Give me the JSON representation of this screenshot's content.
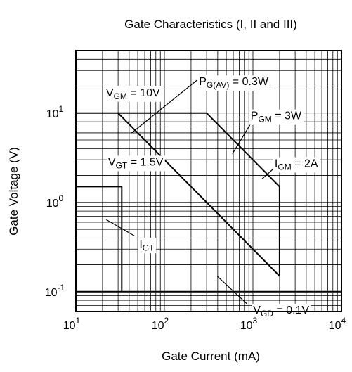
{
  "chart_data": {
    "type": "line",
    "title": "Gate Characteristics  (I, II and III)",
    "xlabel": "Gate Current  (mA)",
    "ylabel": "Gate Voltage  (V)",
    "x_scale": "log",
    "y_scale": "log",
    "xlim": [
      10,
      10000
    ],
    "ylim": [
      0.06,
      50
    ],
    "grid": true,
    "x_ticks": [
      {
        "base": "10",
        "exp": "1",
        "value": 10
      },
      {
        "base": "10",
        "exp": "2",
        "value": 100
      },
      {
        "base": "10",
        "exp": "3",
        "value": 1000
      },
      {
        "base": "10",
        "exp": "4",
        "value": 10000
      }
    ],
    "y_ticks": [
      {
        "base": "10",
        "exp": "1",
        "value": 10
      },
      {
        "base": "10",
        "exp": "0",
        "value": 1
      },
      {
        "base": "10",
        "exp": "-1",
        "value": 0.1
      }
    ],
    "series": [
      {
        "name": "VGM = 10V",
        "x": [
          10,
          300
        ],
        "y": [
          10,
          10
        ]
      },
      {
        "name": "PGM = 3W",
        "x": [
          300,
          2000
        ],
        "y": [
          10,
          1.5
        ]
      },
      {
        "name": "IGM = 2A",
        "x": [
          2000,
          2000
        ],
        "y": [
          1.5,
          0.15
        ]
      },
      {
        "name": "PG(AV) = 0.3W",
        "x": [
          30,
          2000
        ],
        "y": [
          10,
          0.15
        ]
      },
      {
        "name": "VGT = 1.5V",
        "x": [
          10,
          33
        ],
        "y": [
          1.5,
          1.5
        ]
      },
      {
        "name": "IGT",
        "x": [
          33,
          33
        ],
        "y": [
          1.5,
          0.1
        ]
      },
      {
        "name": "VGD = 0.1V",
        "x": [
          10,
          10000
        ],
        "y": [
          0.1,
          0.1
        ]
      }
    ],
    "annotations": [
      {
        "id": "vgm",
        "main": "V",
        "sub": "GM",
        "rest": " = 10V",
        "x": 20,
        "y": 10
      },
      {
        "id": "pgav",
        "main": "P",
        "sub": "G(AV)",
        "rest": " = 0.3W",
        "x": 57,
        "y": 6.2
      },
      {
        "id": "pgm",
        "main": "P",
        "sub": "GM",
        "rest": " = 3W",
        "x": 800,
        "y": 4.2
      },
      {
        "id": "igm",
        "main": "I",
        "sub": "GM",
        "rest": " = 2A",
        "x": 2000,
        "y": 1.5
      },
      {
        "id": "vgt",
        "main": "V",
        "sub": "GT",
        "rest": " = 1.5V",
        "x": 20,
        "y": 1.5
      },
      {
        "id": "igt",
        "main": "I",
        "sub": "GT",
        "rest": "",
        "x": 33,
        "y": 0.4
      },
      {
        "id": "vgd",
        "main": "V",
        "sub": "GD",
        "rest": " = 0.1V",
        "x": 550,
        "y": 0.1
      }
    ]
  }
}
